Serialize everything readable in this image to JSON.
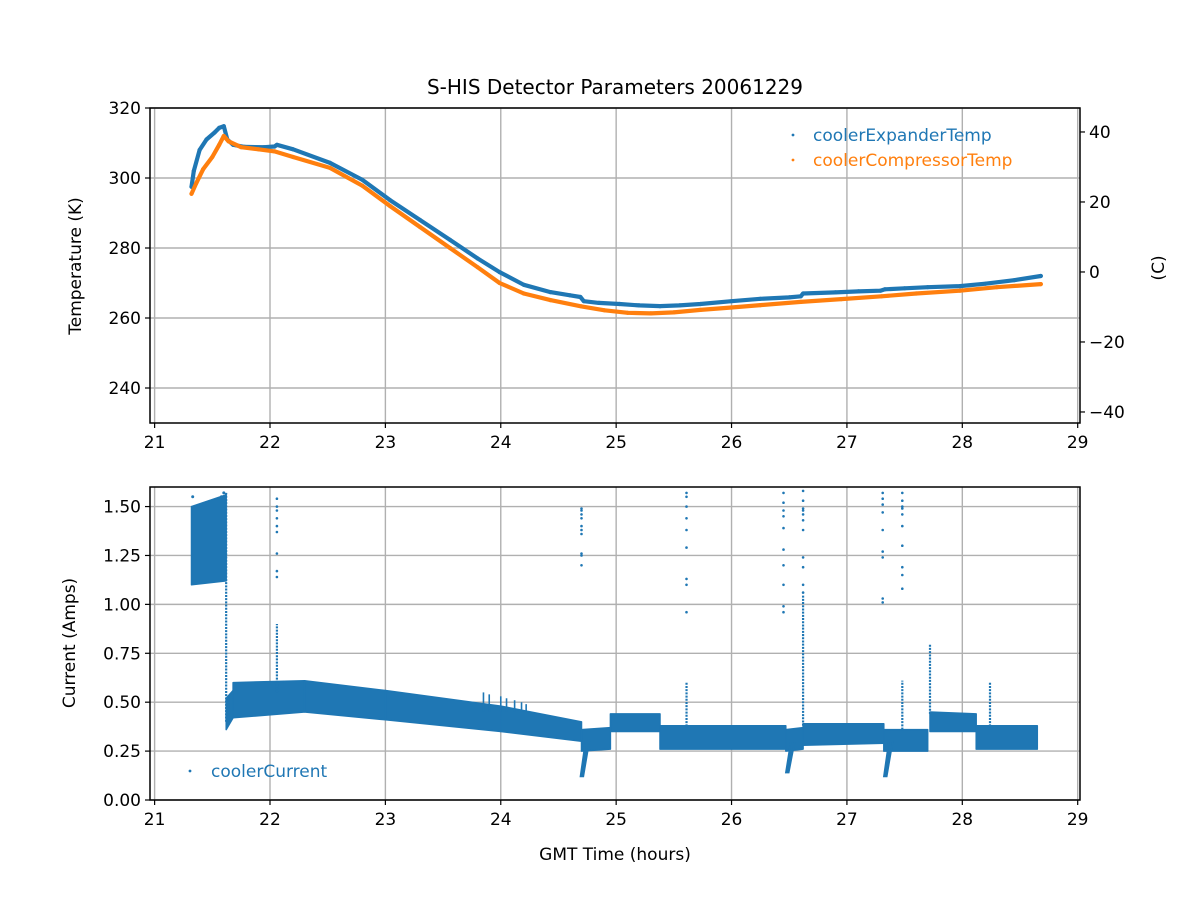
{
  "colors": {
    "expander": "#1f77b4",
    "compressor": "#ff7f0e",
    "current": "#1f77b4",
    "grid": "#b0b0b0",
    "axis": "#000000"
  },
  "chart_data": [
    {
      "type": "scatter",
      "title": "S-HIS Detector Parameters 20061229",
      "xlabel": "",
      "ylabel": "Temperature (K)",
      "ylabel_right": "(C)",
      "xlim": [
        20.96,
        29.02
      ],
      "ylim": [
        230,
        320
      ],
      "ylim_right_celsius": [
        -43.15,
        46.85
      ],
      "xticks": [
        "21",
        "22",
        "23",
        "24",
        "25",
        "26",
        "27",
        "28",
        "29"
      ],
      "xtick_values": [
        21,
        22,
        23,
        24,
        25,
        26,
        27,
        28,
        29
      ],
      "yticks": [
        "240",
        "260",
        "280",
        "300",
        "320"
      ],
      "ytick_values": [
        240,
        260,
        280,
        300,
        320
      ],
      "yticks_right": [
        "−40",
        "−20",
        "0",
        "20",
        "40"
      ],
      "ytick_right_values": [
        -40,
        -20,
        0,
        20,
        40
      ],
      "grid": true,
      "legend_position": "top-right",
      "series": [
        {
          "name": "coolerExpanderTemp",
          "color_key": "expander",
          "x": [
            21.32,
            21.34,
            21.39,
            21.45,
            21.52,
            21.56,
            21.6,
            21.63,
            21.68,
            21.78,
            21.95,
            22.04,
            22.06,
            22.2,
            22.52,
            22.8,
            23.04,
            23.3,
            23.56,
            23.8,
            23.99,
            24.2,
            24.43,
            24.6,
            24.69,
            24.72,
            24.85,
            25.03,
            25.2,
            25.38,
            25.55,
            25.73,
            26.0,
            26.25,
            26.5,
            26.6,
            26.62,
            26.9,
            27.1,
            27.29,
            27.33,
            27.5,
            27.7,
            27.98,
            28.2,
            28.45,
            28.68
          ],
          "y": [
            297.5,
            302.0,
            308.0,
            311.0,
            313.0,
            314.3,
            314.8,
            311.0,
            309.5,
            308.9,
            308.8,
            309.0,
            309.5,
            308.2,
            304.3,
            299.5,
            293.7,
            288.0,
            282.3,
            277.0,
            273.1,
            269.5,
            267.4,
            266.5,
            266.0,
            264.8,
            264.3,
            264.0,
            263.6,
            263.4,
            263.6,
            264.0,
            264.8,
            265.5,
            265.9,
            266.2,
            267.0,
            267.3,
            267.6,
            267.8,
            268.2,
            268.5,
            268.8,
            269.1,
            269.8,
            270.8,
            272.0
          ]
        },
        {
          "name": "coolerCompressorTemp",
          "color_key": "compressor",
          "x": [
            21.32,
            21.36,
            21.42,
            21.5,
            21.56,
            21.6,
            21.64,
            21.75,
            21.9,
            22.04,
            22.2,
            22.52,
            22.8,
            23.04,
            23.3,
            23.56,
            23.8,
            23.99,
            24.2,
            24.43,
            24.7,
            24.9,
            25.1,
            25.3,
            25.5,
            25.73,
            26.0,
            26.25,
            26.6,
            26.95,
            27.3,
            27.6,
            27.98,
            28.3,
            28.68
          ],
          "y": [
            295.5,
            298.5,
            302.5,
            306.0,
            309.5,
            312.0,
            310.5,
            308.8,
            308.2,
            307.6,
            306.0,
            302.9,
            297.8,
            292.0,
            286.0,
            280.0,
            274.5,
            270.0,
            267.0,
            265.1,
            263.3,
            262.2,
            261.5,
            261.3,
            261.6,
            262.3,
            263.0,
            263.7,
            264.6,
            265.4,
            266.2,
            267.0,
            267.8,
            268.8,
            269.7
          ]
        }
      ]
    },
    {
      "type": "scatter",
      "title": "",
      "xlabel": "GMT Time (hours)",
      "ylabel": "Current (Amps)",
      "xlim": [
        20.96,
        29.02
      ],
      "ylim": [
        0.0,
        1.6
      ],
      "xticks": [
        "21",
        "22",
        "23",
        "24",
        "25",
        "26",
        "27",
        "28",
        "29"
      ],
      "xtick_values": [
        21,
        22,
        23,
        24,
        25,
        26,
        27,
        28,
        29
      ],
      "yticks": [
        "0.00",
        "0.25",
        "0.50",
        "0.75",
        "1.00",
        "1.25",
        "1.50"
      ],
      "ytick_values": [
        0.0,
        0.25,
        0.5,
        0.75,
        1.0,
        1.25,
        1.5
      ],
      "grid": true,
      "legend_position": "lower-left",
      "series": [
        {
          "name": "coolerCurrent",
          "color_key": "current",
          "bands": [
            {
              "x0": 21.32,
              "x1": 21.62,
              "low": [
                1.1,
                1.12
              ],
              "high": [
                1.5,
                1.56
              ]
            },
            {
              "x0": 21.62,
              "x1": 21.68,
              "low": [
                0.36,
                0.42
              ],
              "high": [
                0.52,
                0.56
              ]
            },
            {
              "x0": 21.68,
              "x1": 22.3,
              "low": [
                0.42,
                0.45
              ],
              "high": [
                0.6,
                0.61
              ]
            },
            {
              "x0": 22.3,
              "x1": 23.0,
              "low": [
                0.45,
                0.41
              ],
              "high": [
                0.61,
                0.56
              ]
            },
            {
              "x0": 23.0,
              "x1": 24.0,
              "low": [
                0.41,
                0.35
              ],
              "high": [
                0.56,
                0.48
              ]
            },
            {
              "x0": 24.0,
              "x1": 24.7,
              "low": [
                0.35,
                0.3
              ],
              "high": [
                0.48,
                0.4
              ]
            },
            {
              "x0": 24.7,
              "x1": 24.95,
              "low": [
                0.25,
                0.26
              ],
              "high": [
                0.36,
                0.37
              ]
            },
            {
              "x0": 24.95,
              "x1": 25.38,
              "low": [
                0.35,
                0.35
              ],
              "high": [
                0.44,
                0.44
              ]
            },
            {
              "x0": 25.38,
              "x1": 26.47,
              "low": [
                0.26,
                0.26
              ],
              "high": [
                0.38,
                0.38
              ]
            },
            {
              "x0": 26.47,
              "x1": 26.62,
              "low": [
                0.25,
                0.26
              ],
              "high": [
                0.36,
                0.37
              ]
            },
            {
              "x0": 26.62,
              "x1": 27.32,
              "low": [
                0.28,
                0.29
              ],
              "high": [
                0.39,
                0.39
              ]
            },
            {
              "x0": 27.32,
              "x1": 27.7,
              "low": [
                0.25,
                0.25
              ],
              "high": [
                0.36,
                0.36
              ]
            },
            {
              "x0": 27.72,
              "x1": 28.12,
              "low": [
                0.35,
                0.35
              ],
              "high": [
                0.45,
                0.44
              ]
            },
            {
              "x0": 28.12,
              "x1": 28.65,
              "low": [
                0.26,
                0.26
              ],
              "high": [
                0.38,
                0.38
              ]
            }
          ],
          "dips": [
            {
              "x": 24.69,
              "y": 0.12
            },
            {
              "x": 26.47,
              "y": 0.14
            },
            {
              "x": 27.32,
              "y": 0.12
            }
          ],
          "spikes": [
            {
              "x": 21.62,
              "from": 0.4,
              "to": 1.57
            },
            {
              "x": 22.06,
              "from": 0.55,
              "to": 0.9
            },
            {
              "x": 25.61,
              "from": 0.36,
              "to": 0.6
            },
            {
              "x": 26.62,
              "from": 0.38,
              "to": 1.05
            },
            {
              "x": 27.48,
              "from": 0.36,
              "to": 0.61
            },
            {
              "x": 27.72,
              "from": 0.44,
              "to": 0.8
            },
            {
              "x": 28.24,
              "from": 0.36,
              "to": 0.6
            }
          ],
          "outliers": [
            {
              "x": 22.06,
              "y": [
                1.14,
                1.17,
                1.26,
                1.37,
                1.4,
                1.44,
                1.48,
                1.5,
                1.54
              ]
            },
            {
              "x": 24.7,
              "y": [
                1.2,
                1.25,
                1.26,
                1.36,
                1.38,
                1.4,
                1.44,
                1.46,
                1.48,
                1.49
              ]
            },
            {
              "x": 25.61,
              "y": [
                0.96,
                1.1,
                1.13,
                1.29,
                1.38,
                1.44,
                1.5,
                1.55,
                1.57
              ]
            },
            {
              "x": 26.45,
              "y": [
                0.96,
                0.99,
                1.1,
                1.2,
                1.28,
                1.39,
                1.45,
                1.48,
                1.52,
                1.57
              ]
            },
            {
              "x": 26.62,
              "y": [
                1.06,
                1.1,
                1.19,
                1.24,
                1.38,
                1.43,
                1.46,
                1.48,
                1.49,
                1.53,
                1.58
              ]
            },
            {
              "x": 27.31,
              "y": [
                1.01,
                1.03,
                1.24,
                1.27,
                1.38,
                1.47,
                1.51,
                1.54,
                1.57
              ]
            },
            {
              "x": 27.48,
              "y": [
                1.08,
                1.15,
                1.19,
                1.3,
                1.4,
                1.46,
                1.49,
                1.5,
                1.53,
                1.57
              ]
            }
          ]
        }
      ]
    }
  ]
}
